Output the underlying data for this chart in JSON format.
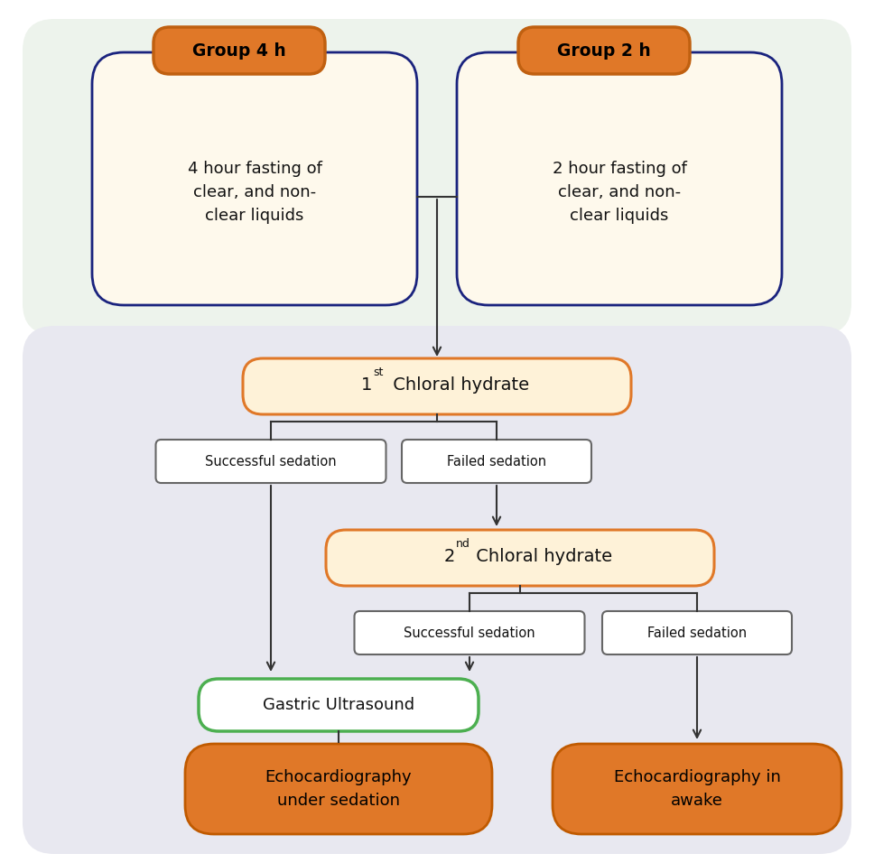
{
  "fig_width": 9.68,
  "fig_height": 9.56,
  "bg_color": "#ffffff",
  "top_panel_bg": "#edf3ec",
  "bottom_panel_bg": "#e8e8f0",
  "group4h_label": "Group 4 h",
  "group4h_text": "4 hour fasting of\nclear, and non-\nclear liquids",
  "group2h_label": "Group 2 h",
  "group2h_text": "2 hour fasting of\nclear, and non-\nclear liquids",
  "chloral1_text_num": "1",
  "chloral1_sup": "st",
  "chloral1_text_rest": " Chloral hydrate",
  "chloral2_text_num": "2",
  "chloral2_sup": "nd",
  "chloral2_text_rest": " Chloral hydrate",
  "success1_text": "Successful sedation",
  "fail1_text": "Failed sedation",
  "success2_text": "Successful sedation",
  "fail2_text": "Failed sedation",
  "gastric_text": "Gastric Ultrasound",
  "echo_sedation_text": "Echocardiography\nunder sedation",
  "echo_awake_text": "Echocardiography in\nawake",
  "light_orange_fill": "#fef9ec",
  "navy_border": "#1a237e",
  "orange_box_fill": "#fef2d8",
  "orange_box_border": "#e07828",
  "label_fill": "#e07828",
  "label_border": "#c06010",
  "green_border": "#4caf50",
  "white_fill": "#ffffff",
  "plain_border": "#666666",
  "dark_orange_fill": "#e07828",
  "dark_orange_border": "#c05a00",
  "arrow_color": "#333333",
  "text_color": "#111111"
}
